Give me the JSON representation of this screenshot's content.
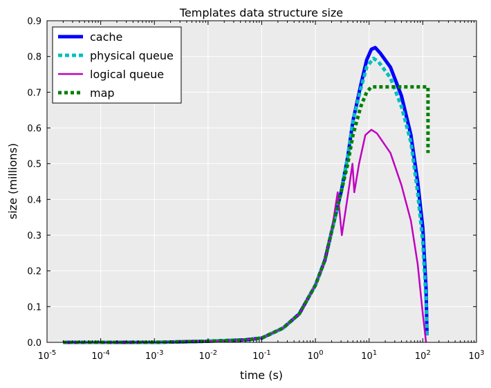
{
  "chart_data": {
    "type": "line",
    "title": "Templates data structure size",
    "xlabel": "time (s)",
    "ylabel": "size (millions)",
    "x_scale": "log",
    "xlim": [
      1e-05,
      1000
    ],
    "ylim": [
      0,
      0.9
    ],
    "grid": true,
    "legend_position": "top-left",
    "x_ticks": [
      {
        "value": 1e-05,
        "base": "10",
        "exp": "-5"
      },
      {
        "value": 0.0001,
        "base": "10",
        "exp": "-4"
      },
      {
        "value": 0.001,
        "base": "10",
        "exp": "-3"
      },
      {
        "value": 0.01,
        "base": "10",
        "exp": "-2"
      },
      {
        "value": 0.1,
        "base": "10",
        "exp": "-1"
      },
      {
        "value": 1,
        "base": "10",
        "exp": "0"
      },
      {
        "value": 10,
        "base": "10",
        "exp": "1"
      },
      {
        "value": 100,
        "base": "10",
        "exp": "2"
      },
      {
        "value": 1000,
        "base": "10",
        "exp": "3"
      }
    ],
    "y_ticks": [
      {
        "value": 0.0,
        "label": "0.0"
      },
      {
        "value": 0.1,
        "label": "0.1"
      },
      {
        "value": 0.2,
        "label": "0.2"
      },
      {
        "value": 0.3,
        "label": "0.3"
      },
      {
        "value": 0.4,
        "label": "0.4"
      },
      {
        "value": 0.5,
        "label": "0.5"
      },
      {
        "value": 0.6,
        "label": "0.6"
      },
      {
        "value": 0.7,
        "label": "0.7"
      },
      {
        "value": 0.8,
        "label": "0.8"
      },
      {
        "value": 0.9,
        "label": "0.9"
      }
    ],
    "series": [
      {
        "name": "cache",
        "color": "#0000ff",
        "dash": "solid",
        "weight": "thick",
        "points": [
          [
            2e-05,
            0.0
          ],
          [
            0.0001,
            0.0
          ],
          [
            0.001,
            0.0
          ],
          [
            0.01,
            0.003
          ],
          [
            0.05,
            0.007
          ],
          [
            0.1,
            0.012
          ],
          [
            0.25,
            0.04
          ],
          [
            0.5,
            0.08
          ],
          [
            1,
            0.16
          ],
          [
            1.5,
            0.23
          ],
          [
            2,
            0.31
          ],
          [
            3,
            0.42
          ],
          [
            4,
            0.52
          ],
          [
            5,
            0.62
          ],
          [
            7,
            0.72
          ],
          [
            9,
            0.79
          ],
          [
            11,
            0.82
          ],
          [
            13,
            0.825
          ],
          [
            16,
            0.81
          ],
          [
            25,
            0.77
          ],
          [
            40,
            0.69
          ],
          [
            60,
            0.58
          ],
          [
            80,
            0.45
          ],
          [
            100,
            0.32
          ],
          [
            115,
            0.15
          ],
          [
            120,
            0.02
          ]
        ]
      },
      {
        "name": "physical queue",
        "color": "#00bfbf",
        "dash": "dashed",
        "weight": "thick",
        "points": [
          [
            2e-05,
            0.0
          ],
          [
            0.0001,
            0.0
          ],
          [
            0.001,
            0.0
          ],
          [
            0.01,
            0.003
          ],
          [
            0.05,
            0.007
          ],
          [
            0.1,
            0.012
          ],
          [
            0.25,
            0.04
          ],
          [
            0.5,
            0.08
          ],
          [
            1,
            0.16
          ],
          [
            1.5,
            0.23
          ],
          [
            2,
            0.31
          ],
          [
            3,
            0.42
          ],
          [
            4,
            0.52
          ],
          [
            5,
            0.62
          ],
          [
            7,
            0.71
          ],
          [
            9,
            0.77
          ],
          [
            12,
            0.795
          ],
          [
            15,
            0.785
          ],
          [
            25,
            0.74
          ],
          [
            40,
            0.66
          ],
          [
            60,
            0.56
          ],
          [
            80,
            0.42
          ],
          [
            100,
            0.28
          ],
          [
            115,
            0.12
          ],
          [
            120,
            0.02
          ]
        ]
      },
      {
        "name": "logical queue",
        "color": "#bf00bf",
        "dash": "solid",
        "weight": "thin",
        "points": [
          [
            2e-05,
            0.0
          ],
          [
            0.0001,
            0.0
          ],
          [
            0.001,
            0.0
          ],
          [
            0.01,
            0.003
          ],
          [
            0.05,
            0.007
          ],
          [
            0.1,
            0.012
          ],
          [
            0.25,
            0.04
          ],
          [
            0.5,
            0.08
          ],
          [
            1,
            0.16
          ],
          [
            1.5,
            0.23
          ],
          [
            2,
            0.31
          ],
          [
            2.6,
            0.42
          ],
          [
            3.1,
            0.3
          ],
          [
            4,
            0.41
          ],
          [
            4.9,
            0.5
          ],
          [
            5.3,
            0.42
          ],
          [
            6.5,
            0.5
          ],
          [
            8.5,
            0.58
          ],
          [
            11,
            0.595
          ],
          [
            14,
            0.585
          ],
          [
            25,
            0.53
          ],
          [
            40,
            0.44
          ],
          [
            60,
            0.34
          ],
          [
            80,
            0.22
          ],
          [
            100,
            0.08
          ],
          [
            115,
            0.0
          ]
        ]
      },
      {
        "name": "map",
        "color": "#008000",
        "dash": "dotted",
        "weight": "thick",
        "points": [
          [
            2e-05,
            0.0
          ],
          [
            0.0001,
            0.0
          ],
          [
            0.001,
            0.0
          ],
          [
            0.01,
            0.003
          ],
          [
            0.05,
            0.007
          ],
          [
            0.1,
            0.012
          ],
          [
            0.25,
            0.04
          ],
          [
            0.5,
            0.08
          ],
          [
            1,
            0.16
          ],
          [
            1.5,
            0.23
          ],
          [
            2,
            0.31
          ],
          [
            3,
            0.42
          ],
          [
            4,
            0.5
          ],
          [
            5,
            0.58
          ],
          [
            7,
            0.66
          ],
          [
            9,
            0.7
          ],
          [
            11,
            0.715
          ],
          [
            20,
            0.715
          ],
          [
            50,
            0.715
          ],
          [
            80,
            0.715
          ],
          [
            110,
            0.715
          ],
          [
            125,
            0.715
          ],
          [
            125,
            0.53
          ]
        ]
      }
    ]
  }
}
